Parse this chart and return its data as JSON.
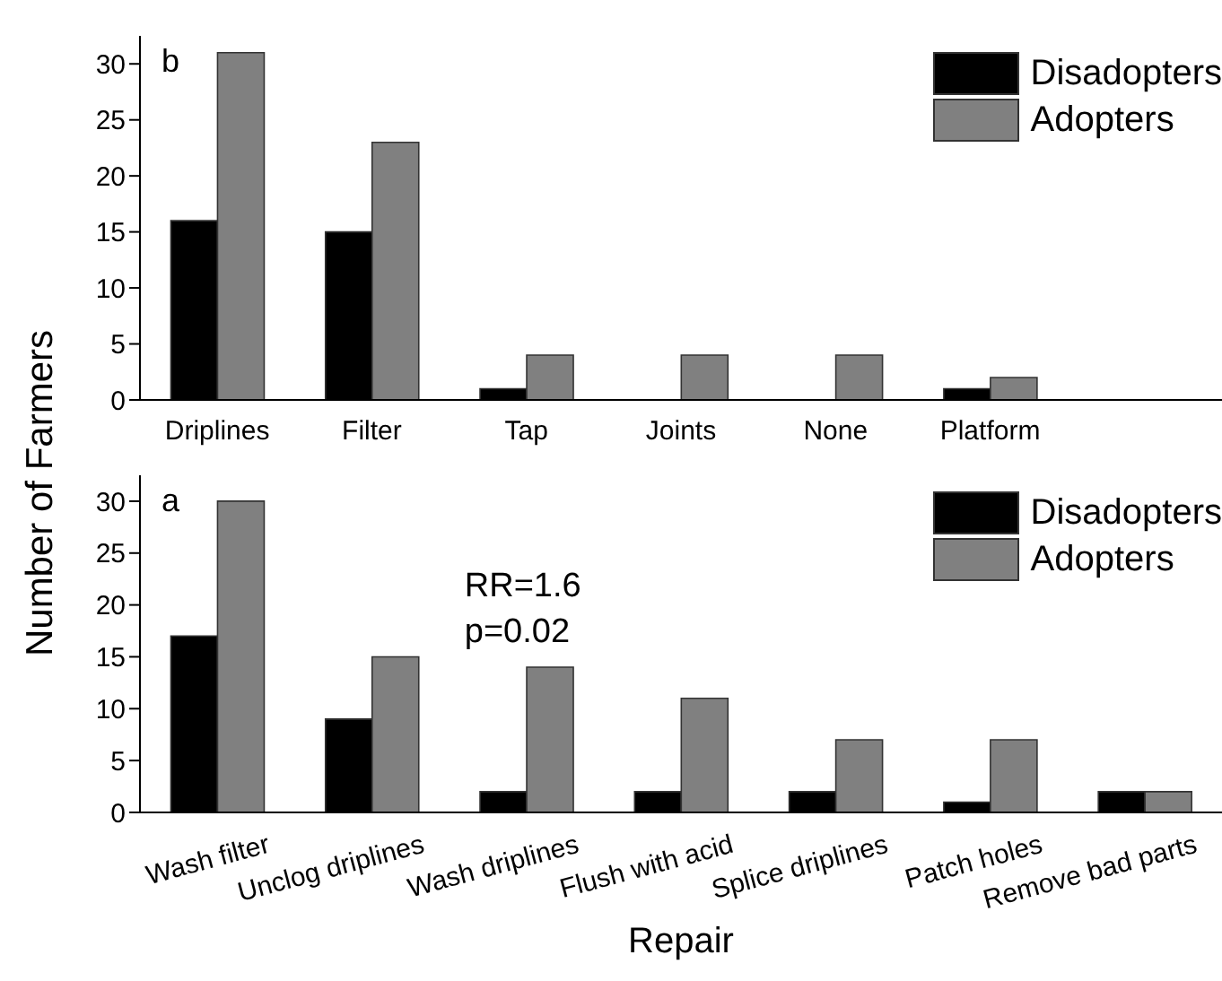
{
  "chart_data": [
    {
      "type": "bar",
      "title": "b",
      "ylabel": "Number of Farmers",
      "categories": [
        "Driplines",
        "Filter",
        "Tap",
        "Joints",
        "None",
        "Platform",
        null
      ],
      "series": [
        {
          "name": "Disadopters",
          "color": "#000000",
          "values": [
            16,
            15,
            1,
            0,
            0,
            1,
            null
          ]
        },
        {
          "name": "Adopters",
          "color": "#808080",
          "values": [
            31,
            23,
            4,
            4,
            4,
            2,
            null
          ]
        }
      ],
      "ylim": [
        0,
        32.5
      ],
      "yticks": [
        0,
        5,
        10,
        15,
        20,
        25,
        30
      ],
      "legend": "top right",
      "grid": false
    },
    {
      "type": "bar",
      "title": "a",
      "xlabel": "Repair",
      "categories": [
        "Wash filter",
        "Unclog driplines",
        "Wash driplines",
        "Flush with acid",
        "Splice driplines",
        "Patch holes",
        "Remove bad parts"
      ],
      "series": [
        {
          "name": "Disadopters",
          "color": "#000000",
          "values": [
            17,
            9,
            2,
            2,
            2,
            1,
            2
          ]
        },
        {
          "name": "Adopters",
          "color": "#808080",
          "values": [
            30,
            15,
            14,
            11,
            7,
            7,
            2
          ]
        }
      ],
      "ylim": [
        0,
        32.5
      ],
      "yticks": [
        0,
        5,
        10,
        15,
        20,
        25,
        30
      ],
      "legend": "top right",
      "grid": false,
      "annotations": [
        "RR=1.6",
        "p=0.02"
      ]
    }
  ]
}
